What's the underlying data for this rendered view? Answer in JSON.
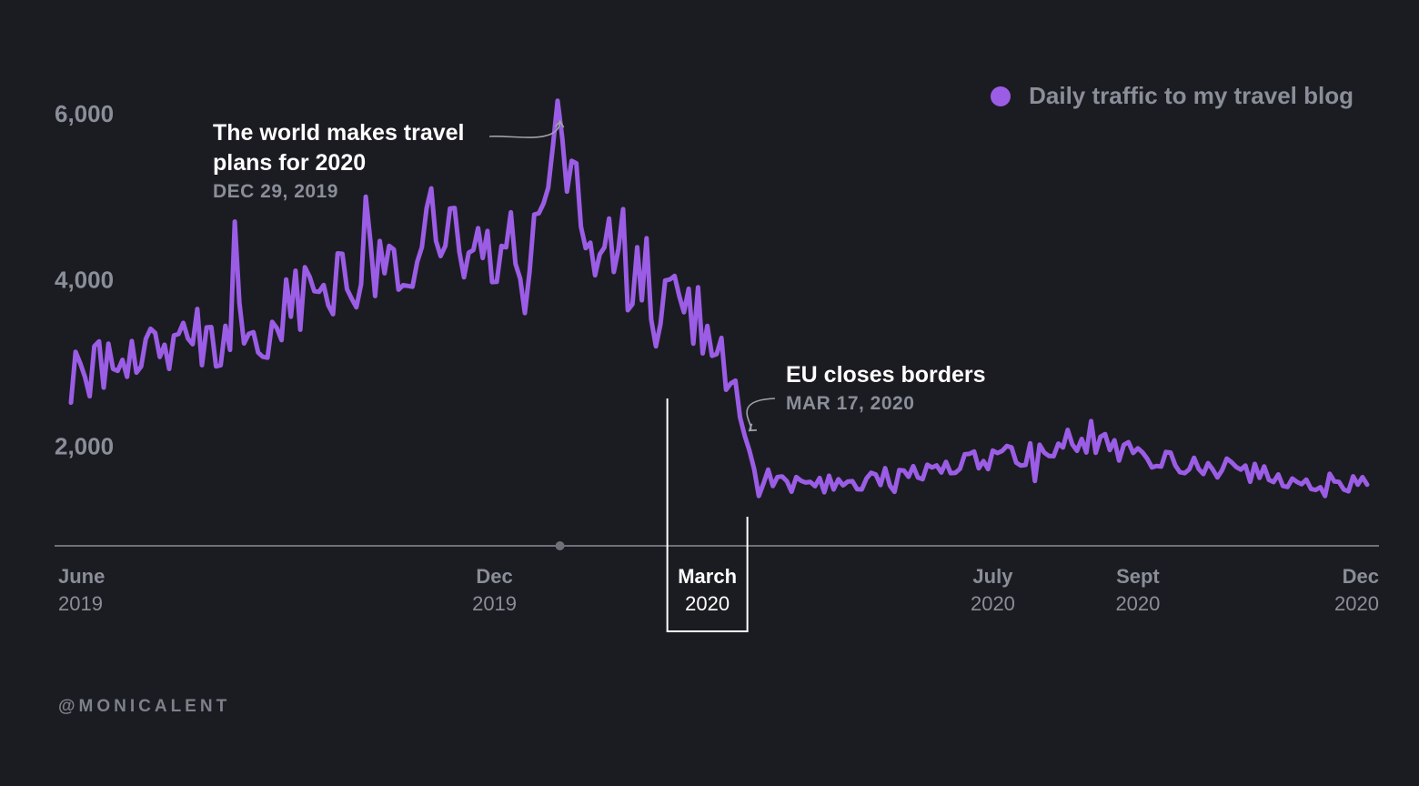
{
  "legend": {
    "label": "Daily traffic to my travel blog",
    "color": "#9b5de5"
  },
  "annotations": {
    "world": {
      "title_line1": "The world makes travel",
      "title_line2": "plans for 2020",
      "date": "DEC 29, 2019"
    },
    "eu": {
      "title": "EU closes borders",
      "date": "MAR 17, 2020"
    }
  },
  "credit": "@MONICALENT",
  "colors": {
    "background": "#1b1c21",
    "line": "#9b5de5",
    "axis": "#6e717a",
    "tick_text": "#8a8e99",
    "highlight": "#ffffff"
  },
  "chart_data": {
    "type": "line",
    "series_name": "Daily traffic to my travel blog",
    "y_ticks": [
      "6,000",
      "4,000",
      "2,000"
    ],
    "y_tick_values": [
      6000,
      4000,
      2000
    ],
    "ylim": [
      800,
      6600
    ],
    "x_ticks": [
      {
        "month": "June",
        "year": "2019",
        "date": "2019-06-01",
        "anchor": "start"
      },
      {
        "month": "Dec",
        "year": "2019",
        "date": "2019-12-01",
        "anchor": "middle"
      },
      {
        "month": "March",
        "year": "2020",
        "date": "2020-03-01",
        "anchor": "middle",
        "highlight": true
      },
      {
        "month": "July",
        "year": "2020",
        "date": "2020-07-01",
        "anchor": "middle"
      },
      {
        "month": "Sept",
        "year": "2020",
        "date": "2020-09-01",
        "anchor": "middle"
      },
      {
        "month": "Dec",
        "year": "2020",
        "date": "2020-12-01",
        "anchor": "end"
      }
    ],
    "anchors": [
      {
        "date": "2019-06-03",
        "value": 2800
      },
      {
        "date": "2019-07-01",
        "value": 3200
      },
      {
        "date": "2019-07-29",
        "value": 3300
      },
      {
        "date": "2019-08-26",
        "value": 3400
      },
      {
        "date": "2019-09-10",
        "value": 3800
      },
      {
        "date": "2019-09-28",
        "value": 4050
      },
      {
        "date": "2019-10-20",
        "value": 4300
      },
      {
        "date": "2019-11-12",
        "value": 4500
      },
      {
        "date": "2019-12-05",
        "value": 4400
      },
      {
        "date": "2019-12-20",
        "value": 4600
      },
      {
        "date": "2019-12-29",
        "value": 5700
      },
      {
        "date": "2020-01-10",
        "value": 4600
      },
      {
        "date": "2020-01-28",
        "value": 4000
      },
      {
        "date": "2020-02-15",
        "value": 3800
      },
      {
        "date": "2020-03-03",
        "value": 3400
      },
      {
        "date": "2020-03-10",
        "value": 2900
      },
      {
        "date": "2020-03-17",
        "value": 2150
      },
      {
        "date": "2020-03-21",
        "value": 1700
      },
      {
        "date": "2020-04-10",
        "value": 1520
      },
      {
        "date": "2020-05-15",
        "value": 1620
      },
      {
        "date": "2020-06-15",
        "value": 1800
      },
      {
        "date": "2020-07-15",
        "value": 1900
      },
      {
        "date": "2020-08-05",
        "value": 2100
      },
      {
        "date": "2020-08-25",
        "value": 1950
      },
      {
        "date": "2020-09-15",
        "value": 1820
      },
      {
        "date": "2020-10-15",
        "value": 1700
      },
      {
        "date": "2020-11-15",
        "value": 1580
      },
      {
        "date": "2020-12-08",
        "value": 1550
      }
    ],
    "spikes": [
      {
        "date": "2019-08-13",
        "value": 4700
      },
      {
        "date": "2019-10-08",
        "value": 5000
      },
      {
        "date": "2019-11-04",
        "value": 5100
      },
      {
        "date": "2019-12-15",
        "value": 3600
      },
      {
        "date": "2019-12-31",
        "value": 5700
      },
      {
        "date": "2020-01-26",
        "value": 4850
      },
      {
        "date": "2020-02-05",
        "value": 4500
      },
      {
        "date": "2020-02-09",
        "value": 3200
      },
      {
        "date": "2020-03-24",
        "value": 1400
      },
      {
        "date": "2020-05-20",
        "value": 1450
      },
      {
        "date": "2020-07-20",
        "value": 1580
      },
      {
        "date": "2020-08-12",
        "value": 2300
      },
      {
        "date": "2020-11-20",
        "value": 1400
      }
    ],
    "start": "2019-06-03",
    "end": "2020-12-08",
    "annotation_points": [
      {
        "date": "2019-12-29",
        "value": 5700
      },
      {
        "date": "2020-03-17",
        "value": 2150
      }
    ],
    "grid": false,
    "legend_position": "top-right"
  }
}
